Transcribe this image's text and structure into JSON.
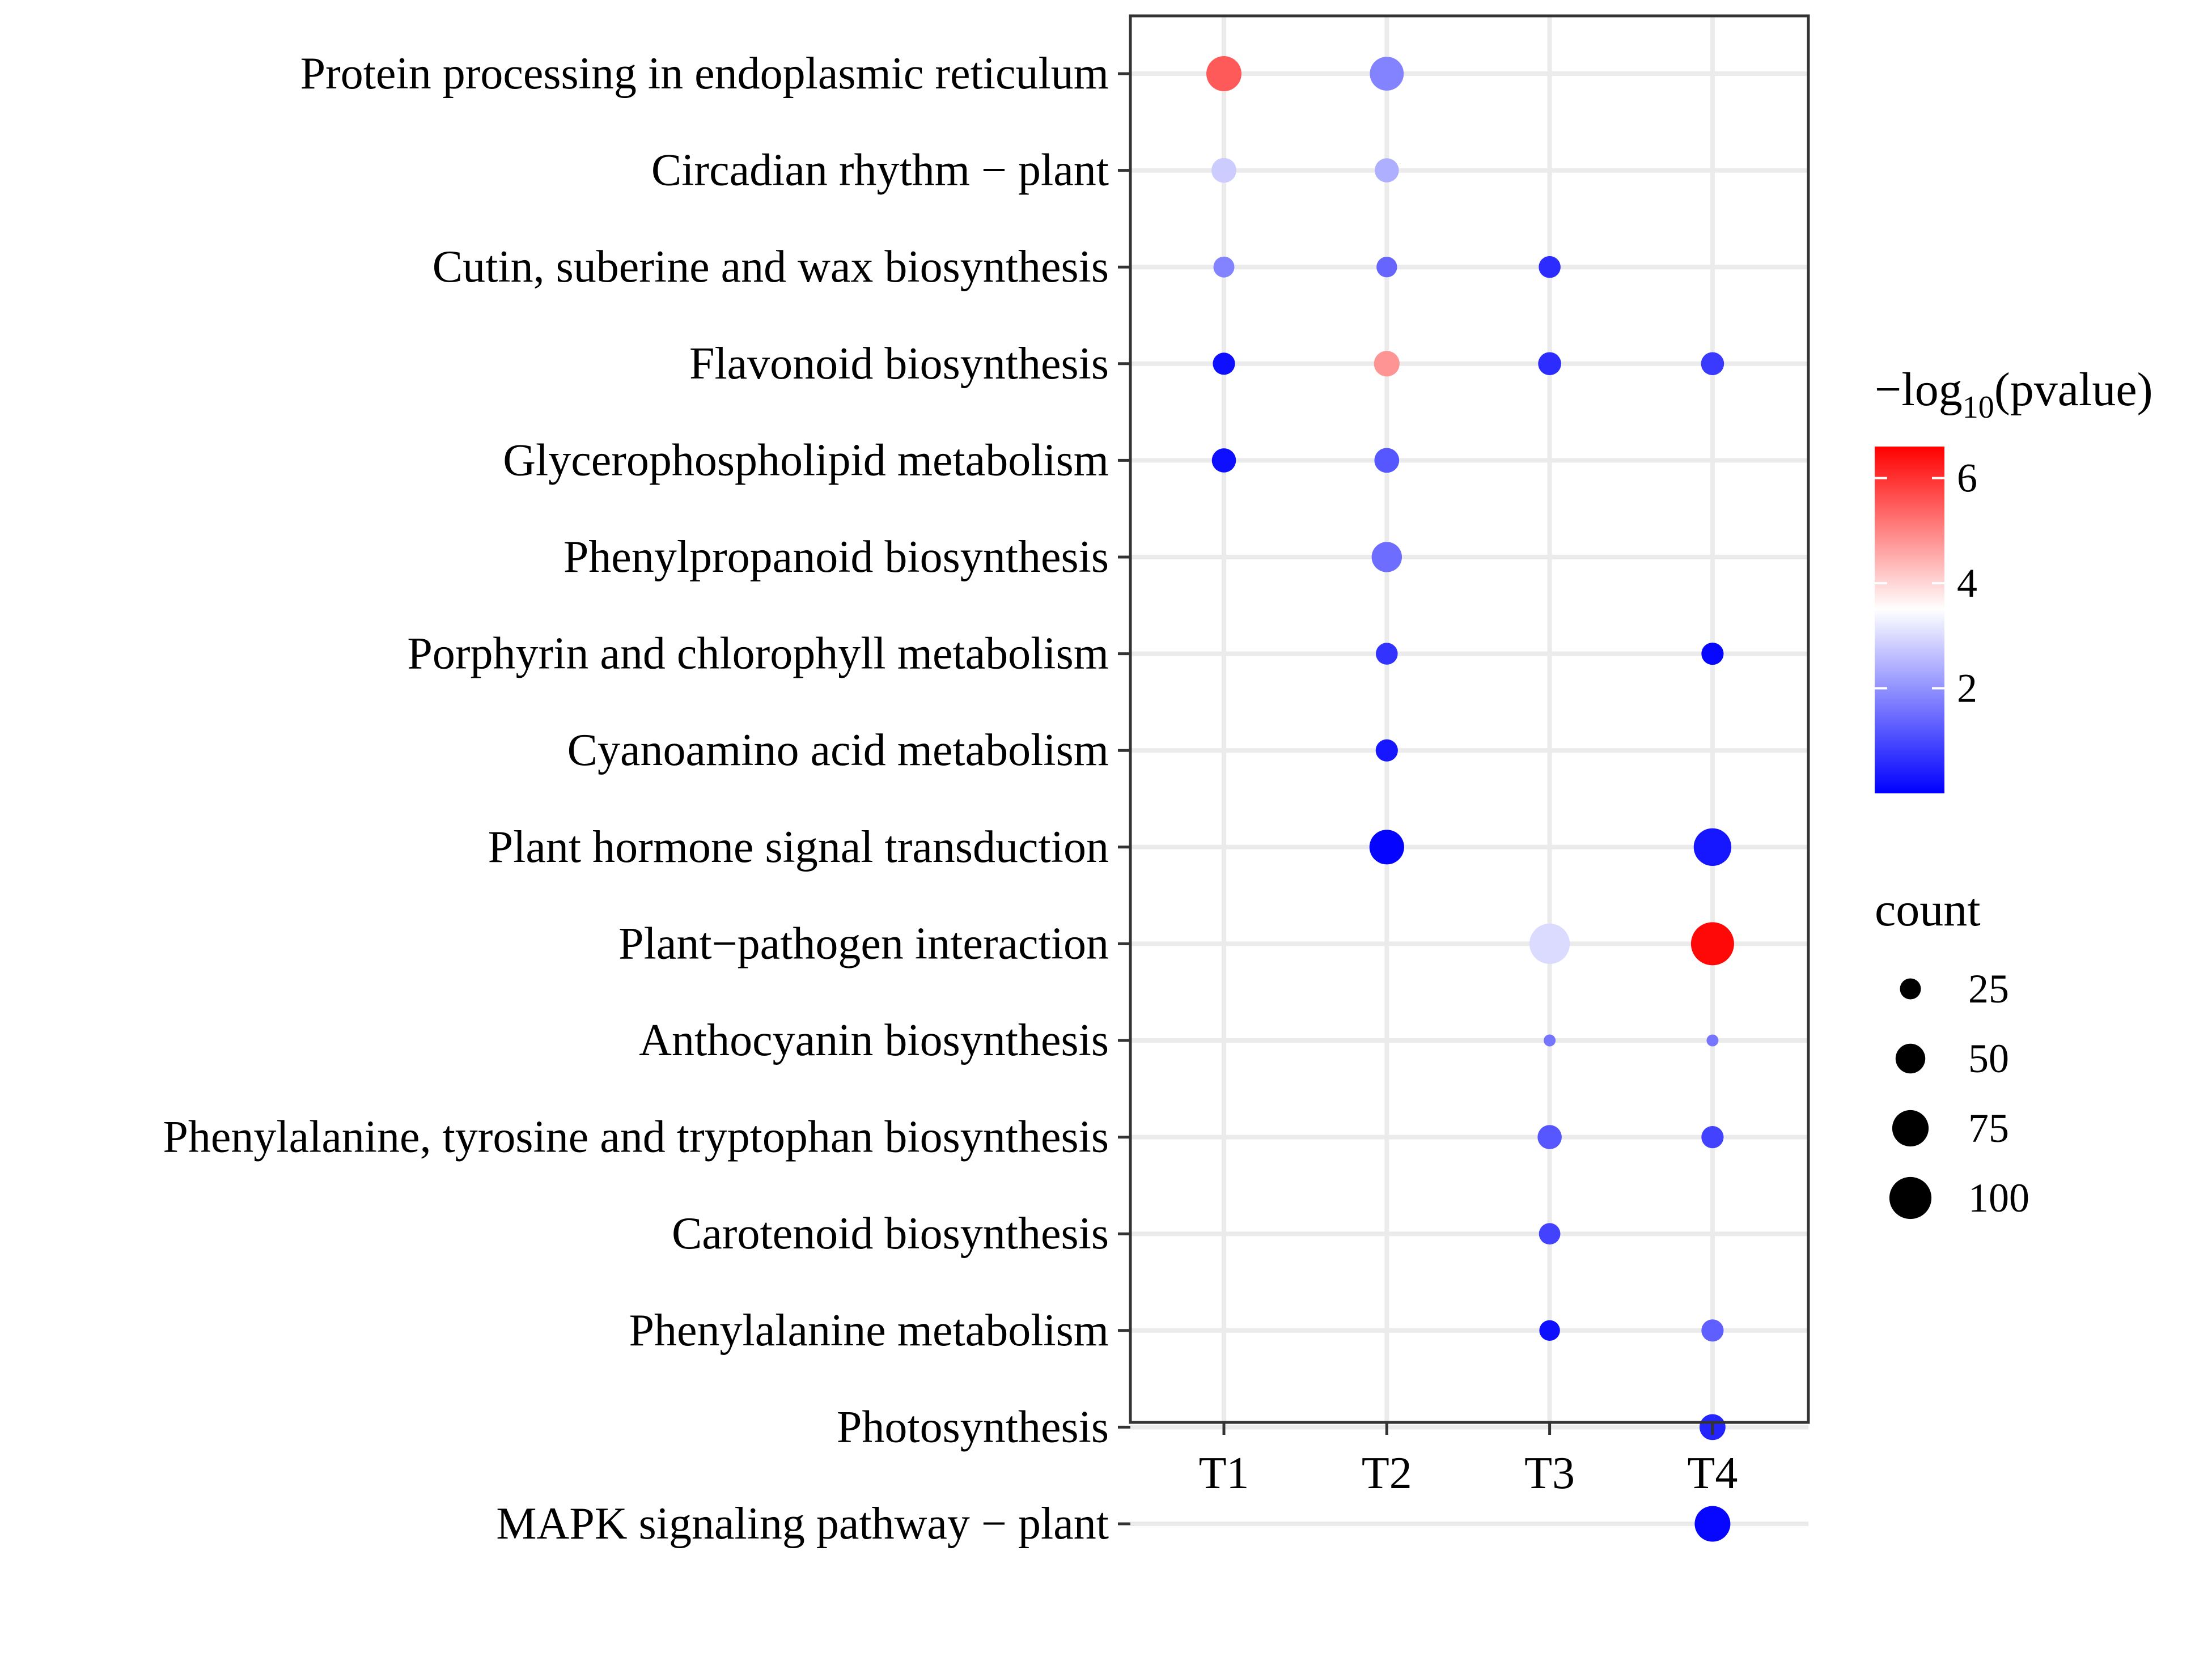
{
  "chart_data": {
    "type": "scatter",
    "subtype": "bubble",
    "x_categories": [
      "T1",
      "T2",
      "T3",
      "T4"
    ],
    "y_categories": [
      "Protein processing in endoplasmic reticulum",
      "Circadian rhythm − plant",
      "Cutin, suberine and wax biosynthesis",
      "Flavonoid biosynthesis",
      "Glycerophospholipid metabolism",
      "Phenylpropanoid biosynthesis",
      "Porphyrin and chlorophyll metabolism",
      "Cyanoamino acid metabolism",
      "Plant hormone signal transduction",
      "Plant−pathogen interaction",
      "Anthocyanin biosynthesis",
      "Phenylalanine, tyrosine and tryptophan biosynthesis",
      "Carotenoid biosynthesis",
      "Phenylalanine metabolism",
      "Photosynthesis",
      "MAPK signaling pathway − plant"
    ],
    "points": [
      {
        "x": "T1",
        "y": "Protein processing in endoplasmic reticulum",
        "count": 70,
        "neglog10p": 5.5
      },
      {
        "x": "T2",
        "y": "Protein processing in endoplasmic reticulum",
        "count": 65,
        "neglog10p": 1.8
      },
      {
        "x": "T1",
        "y": "Circadian rhythm − plant",
        "count": 35,
        "neglog10p": 2.8
      },
      {
        "x": "T2",
        "y": "Circadian rhythm − plant",
        "count": 33,
        "neglog10p": 2.4
      },
      {
        "x": "T1",
        "y": "Cutin, suberine and wax biosynthesis",
        "count": 25,
        "neglog10p": 1.8
      },
      {
        "x": "T2",
        "y": "Cutin, suberine and wax biosynthesis",
        "count": 24,
        "neglog10p": 1.4
      },
      {
        "x": "T3",
        "y": "Cutin, suberine and wax biosynthesis",
        "count": 27,
        "neglog10p": 0.6
      },
      {
        "x": "T1",
        "y": "Flavonoid biosynthesis",
        "count": 28,
        "neglog10p": 0.2
      },
      {
        "x": "T2",
        "y": "Flavonoid biosynthesis",
        "count": 37,
        "neglog10p": 4.8
      },
      {
        "x": "T3",
        "y": "Flavonoid biosynthesis",
        "count": 30,
        "neglog10p": 0.6
      },
      {
        "x": "T4",
        "y": "Flavonoid biosynthesis",
        "count": 30,
        "neglog10p": 0.8
      },
      {
        "x": "T1",
        "y": "Glycerophospholipid metabolism",
        "count": 33,
        "neglog10p": 0.2
      },
      {
        "x": "T2",
        "y": "Glycerophospholipid metabolism",
        "count": 35,
        "neglog10p": 1.2
      },
      {
        "x": "T2",
        "y": "Phenylpropanoid biosynthesis",
        "count": 52,
        "neglog10p": 1.5
      },
      {
        "x": "T2",
        "y": "Porphyrin and chlorophyll metabolism",
        "count": 27,
        "neglog10p": 0.7
      },
      {
        "x": "T4",
        "y": "Porphyrin and chlorophyll metabolism",
        "count": 28,
        "neglog10p": 0.1
      },
      {
        "x": "T2",
        "y": "Cyanoamino acid metabolism",
        "count": 28,
        "neglog10p": 0.3
      },
      {
        "x": "T2",
        "y": "Plant hormone signal transduction",
        "count": 68,
        "neglog10p": 0.05
      },
      {
        "x": "T4",
        "y": "Plant hormone signal transduction",
        "count": 80,
        "neglog10p": 0.3
      },
      {
        "x": "T3",
        "y": "Plant−pathogen interaction",
        "count": 92,
        "neglog10p": 3.0
      },
      {
        "x": "T4",
        "y": "Plant−pathogen interaction",
        "count": 105,
        "neglog10p": 6.5
      },
      {
        "x": "T3",
        "y": "Anthocyanin biosynthesis",
        "count": 8,
        "neglog10p": 1.6
      },
      {
        "x": "T4",
        "y": "Anthocyanin biosynthesis",
        "count": 8,
        "neglog10p": 1.6
      },
      {
        "x": "T3",
        "y": "Phenylalanine, tyrosine and tryptophan biosynthesis",
        "count": 33,
        "neglog10p": 1.2
      },
      {
        "x": "T4",
        "y": "Phenylalanine, tyrosine and tryptophan biosynthesis",
        "count": 28,
        "neglog10p": 0.9
      },
      {
        "x": "T3",
        "y": "Carotenoid biosynthesis",
        "count": 26,
        "neglog10p": 0.9
      },
      {
        "x": "T3",
        "y": "Phenylalanine metabolism",
        "count": 24,
        "neglog10p": 0.2
      },
      {
        "x": "T4",
        "y": "Phenylalanine metabolism",
        "count": 28,
        "neglog10p": 1.3
      },
      {
        "x": "T4",
        "y": "Photosynthesis",
        "count": 38,
        "neglog10p": 0.5
      },
      {
        "x": "T4",
        "y": "MAPK signaling pathway − plant",
        "count": 72,
        "neglog10p": 0.1
      }
    ],
    "color_scale": {
      "title_prefix": "−log",
      "title_subscript": "10",
      "title_suffix": "(pvalue)",
      "min": 0,
      "mid": 3.5,
      "max": 6.6,
      "low_color": "#0000ff",
      "mid_color": "#ffffff",
      "high_color": "#ff0000",
      "ticks": [
        2,
        4,
        6
      ],
      "tick_labels": [
        "2",
        "4",
        "6"
      ]
    },
    "size_legend": {
      "title": "count",
      "values": [
        25,
        50,
        75,
        100
      ],
      "labels": [
        "25",
        "50",
        "75",
        "100"
      ]
    },
    "max_count": 105,
    "title": "",
    "xlabel": "",
    "ylabel": "",
    "grid": true,
    "legend_position": "right"
  }
}
